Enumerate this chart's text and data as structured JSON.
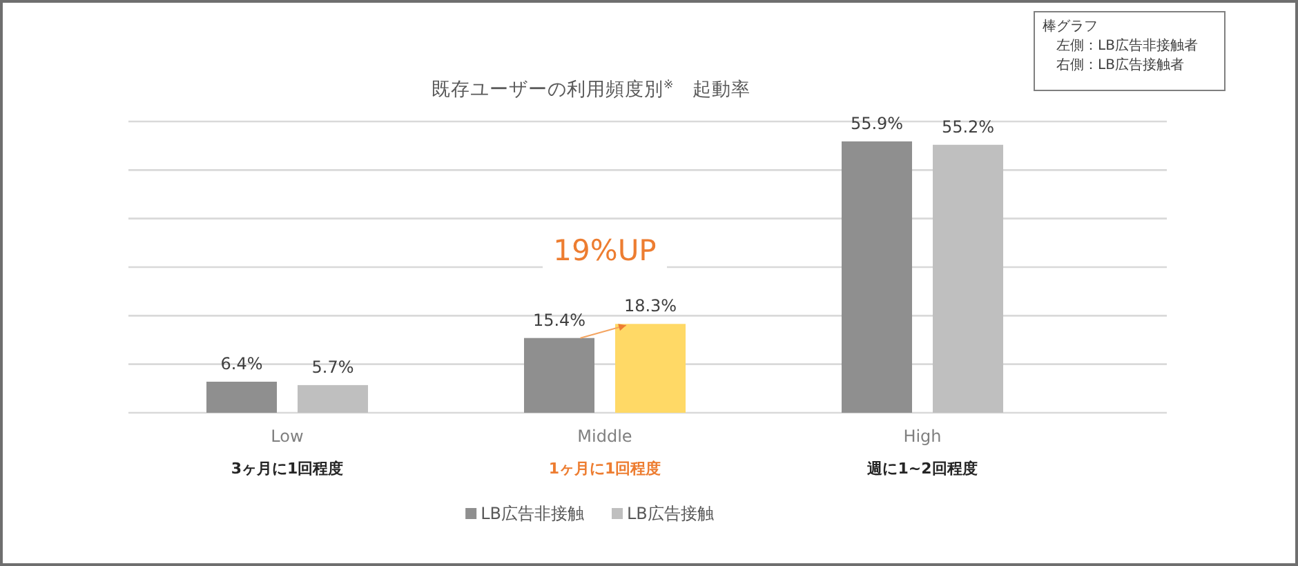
{
  "chart_data": {
    "type": "bar",
    "title": "既存ユーザーの利用頻度別$^{※}$　起動率",
    "categories": [
      "Low\n3ヶ月に1回程度",
      "Middle\n1ヶ月に1回程度",
      "High\n週に1~2回程度"
    ],
    "series": [
      {
        "name": "LB広告非接触",
        "color": "#8f8f8f",
        "values": [
          6.4,
          15.4,
          55.9
        ],
        "value_labels": [
          "6.4%",
          "15.4%",
          "55.9%"
        ]
      },
      {
        "name": "LB広告接触",
        "color": "#bfbfbf",
        "colors": [
          "#bfbfbf",
          "#ffd966",
          "#bfbfbf"
        ],
        "values": [
          5.7,
          18.3,
          55.2
        ],
        "value_labels": [
          "5.7%",
          "18.3%",
          "55.2%"
        ]
      }
    ],
    "ylim": [
      0,
      60
    ],
    "yticks": [
      {
        "value": 0,
        "label": null
      },
      {
        "value": 10,
        "label": null
      },
      {
        "value": 20,
        "label": null
      },
      {
        "value": 30,
        "label": null
      },
      {
        "value": 40,
        "label": null
      },
      {
        "value": 50,
        "label": null
      },
      {
        "value": 60,
        "label": null
      }
    ],
    "tick_labels": "x",
    "grid": "y",
    "legend": "bottom",
    "annotations": [
      "棒グラフ",
      "左側：LB広告非接触者",
      "右側：LB広告接触者",
      "19%UP"
    ]
  }
}
